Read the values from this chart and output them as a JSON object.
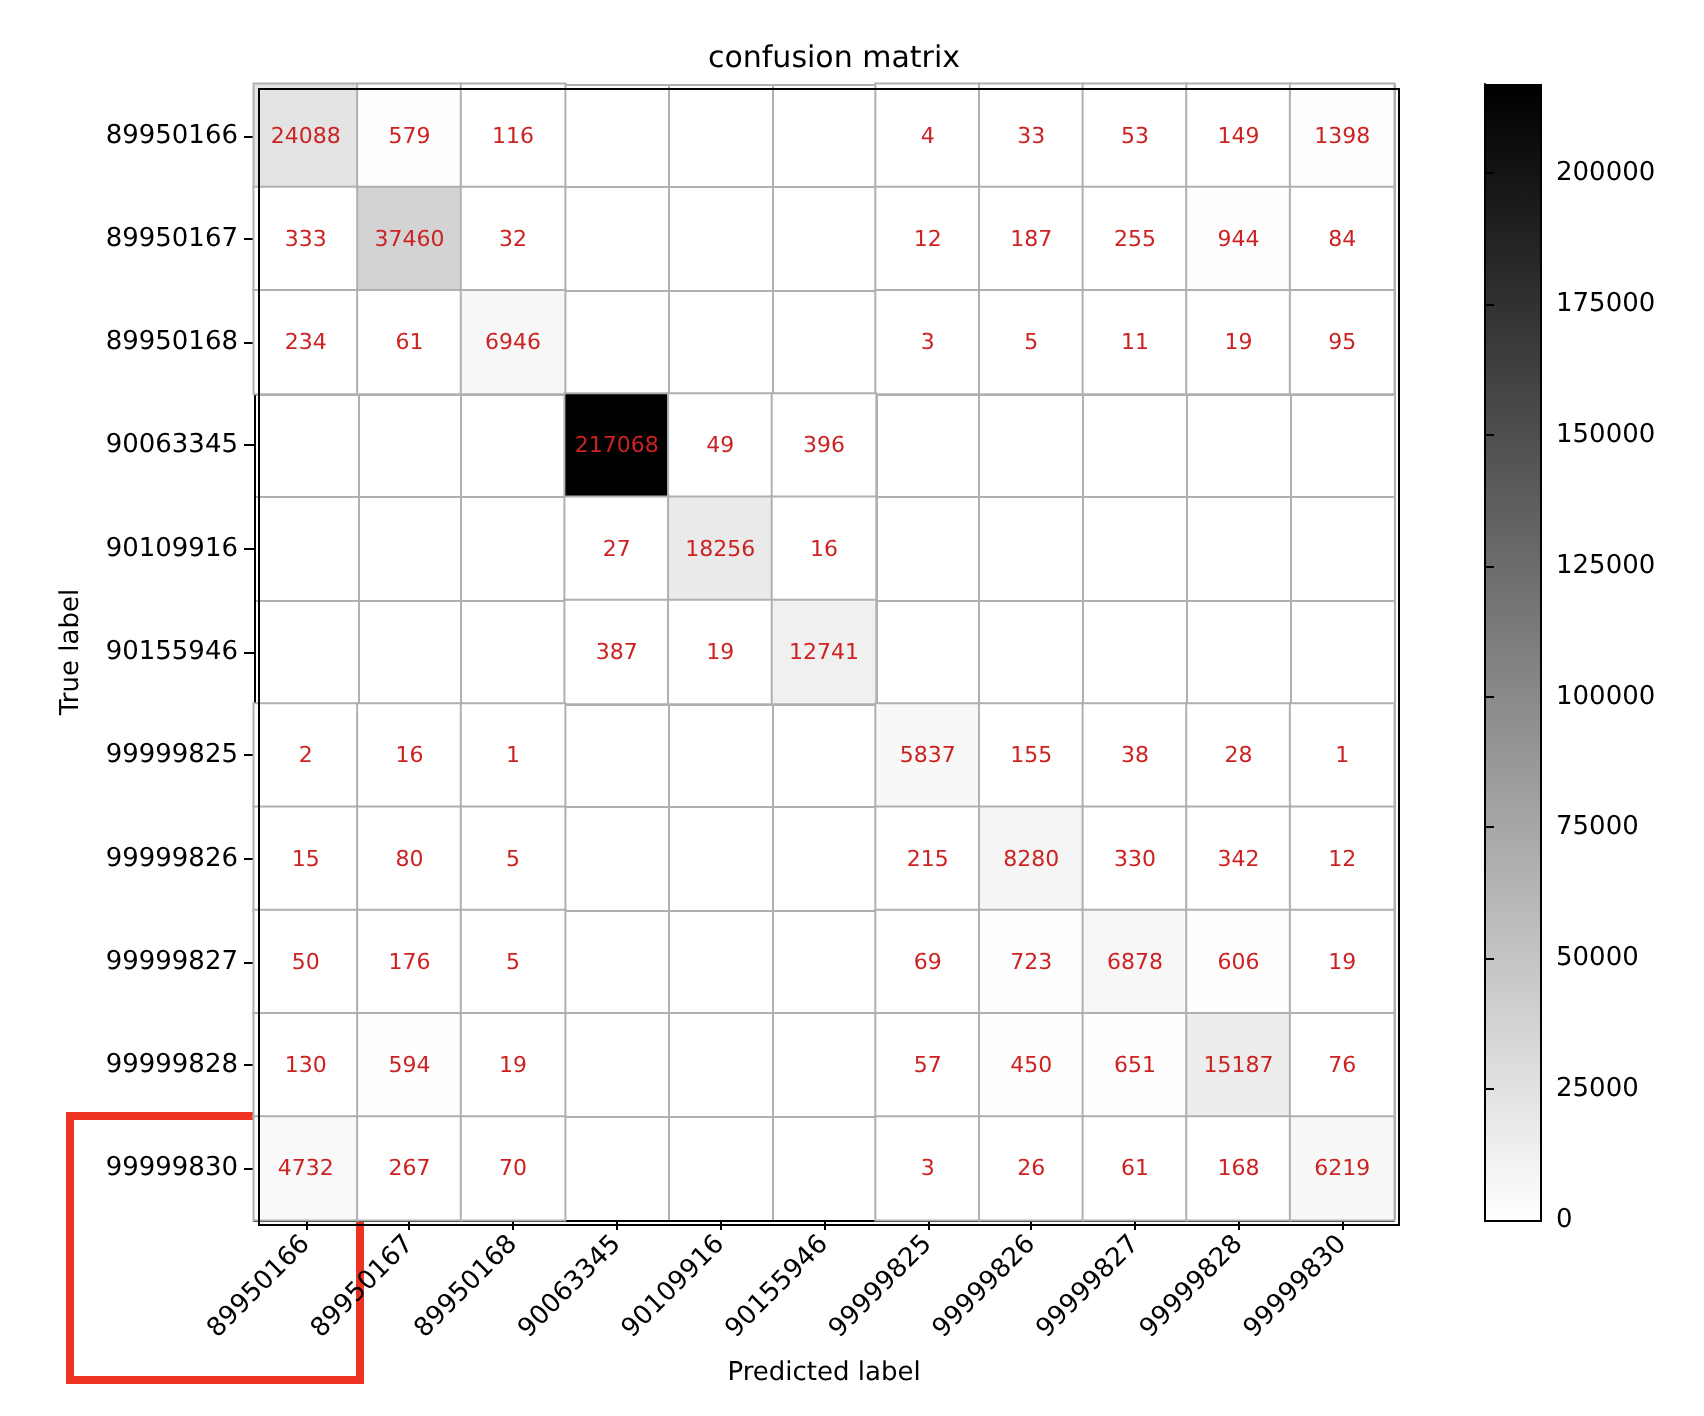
{
  "chart_data": {
    "type": "heatmap",
    "title": "confusion matrix",
    "xlabel": "Predicted label",
    "ylabel": "True label",
    "categories": [
      "89950166",
      "89950167",
      "89950168",
      "90063345",
      "90109916",
      "90155946",
      "99999825",
      "99999826",
      "99999827",
      "99999828",
      "99999830"
    ],
    "y_categories": [
      "89950166",
      "89950167",
      "89950168",
      "90063345",
      "90109916",
      "90155946",
      "99999825",
      "99999826",
      "99999827",
      "99999828",
      "99999830"
    ],
    "cells": [
      [
        24088,
        579,
        116,
        null,
        null,
        null,
        4,
        33,
        53,
        149,
        1398
      ],
      [
        333,
        37460,
        32,
        null,
        null,
        null,
        12,
        187,
        255,
        944,
        84
      ],
      [
        234,
        61,
        6946,
        null,
        null,
        null,
        3,
        5,
        11,
        19,
        95
      ],
      [
        null,
        null,
        null,
        217068,
        49,
        396,
        null,
        null,
        null,
        null,
        null
      ],
      [
        null,
        null,
        null,
        27,
        18256,
        16,
        null,
        null,
        null,
        null,
        null
      ],
      [
        null,
        null,
        null,
        387,
        19,
        12741,
        null,
        null,
        null,
        null,
        null
      ],
      [
        2,
        16,
        1,
        null,
        null,
        null,
        5837,
        155,
        38,
        28,
        1
      ],
      [
        15,
        80,
        5,
        null,
        null,
        null,
        215,
        8280,
        330,
        342,
        12
      ],
      [
        50,
        176,
        5,
        null,
        null,
        null,
        69,
        723,
        6878,
        606,
        19
      ],
      [
        130,
        594,
        19,
        null,
        null,
        null,
        57,
        450,
        651,
        15187,
        76
      ],
      [
        4732,
        267,
        70,
        null,
        null,
        null,
        3,
        26,
        61,
        168,
        6219
      ]
    ],
    "clim": [
      0,
      217068
    ],
    "cticks": [
      0,
      25000,
      50000,
      75000,
      100000,
      125000,
      150000,
      175000,
      200000
    ],
    "data_labels": true,
    "grid": true
  }
}
